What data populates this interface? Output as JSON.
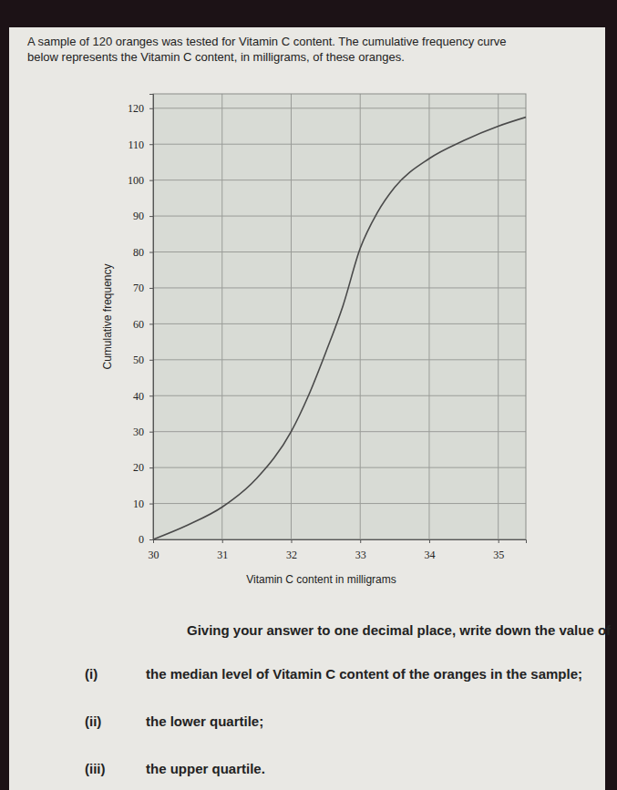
{
  "intro": [
    "A sample of 120 oranges was tested for Vitamin C content.  The cumulative frequency curve",
    "below represents the Vitamin C content, in milligrams, of these oranges."
  ],
  "chart_data": {
    "type": "line",
    "x": [
      30,
      30.5,
      31,
      31.5,
      32,
      32.25,
      32.5,
      32.75,
      33,
      33.25,
      33.5,
      34,
      34.5,
      35,
      35.4
    ],
    "values": [
      0,
      4,
      9,
      17,
      30,
      40,
      52,
      65,
      81,
      91,
      98,
      106,
      111,
      115,
      117.5
    ],
    "color": "#4a4a4a",
    "xlim": [
      30,
      35.4
    ],
    "ylim": [
      0,
      124
    ],
    "xticks": [
      30,
      31,
      32,
      33,
      34,
      35
    ],
    "yticks": [
      0,
      10,
      20,
      30,
      40,
      50,
      60,
      70,
      80,
      90,
      100,
      110,
      120
    ],
    "x_label": "Vitamin C content in milligrams",
    "y_label": "Cumulative frequency",
    "grid": true
  },
  "instruction": "Giving your answer to one decimal place, write down the value of",
  "questions": [
    {
      "label": "(i)",
      "text": "the median level of Vitamin C content of the oranges in the sample;"
    },
    {
      "label": "(ii)",
      "text": "the lower quartile;"
    },
    {
      "label": "(iii)",
      "text": "the upper quartile."
    }
  ]
}
